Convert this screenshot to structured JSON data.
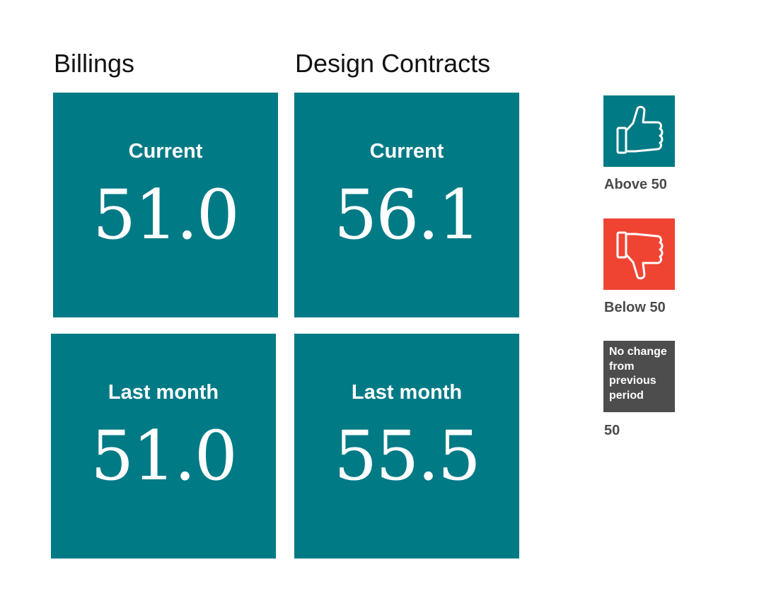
{
  "colors": {
    "tile": "#007a85",
    "above": "#007a85",
    "below": "#f04433",
    "neutral": "#4d4d4d"
  },
  "columns": [
    {
      "title": "Billings",
      "current": {
        "label": "Current",
        "value": "51.0"
      },
      "last_month": {
        "label": "Last month",
        "value": "51.0"
      }
    },
    {
      "title": "Design Contracts",
      "current": {
        "label": "Current",
        "value": "56.1"
      },
      "last_month": {
        "label": "Last month",
        "value": "55.5"
      }
    }
  ],
  "legend": {
    "above": {
      "icon": "thumbs-up-icon",
      "caption": "Above 50"
    },
    "below": {
      "icon": "thumbs-down-icon",
      "caption": "Below 50"
    },
    "no_change": {
      "box_text": "No change from previous period",
      "caption": "50"
    }
  }
}
